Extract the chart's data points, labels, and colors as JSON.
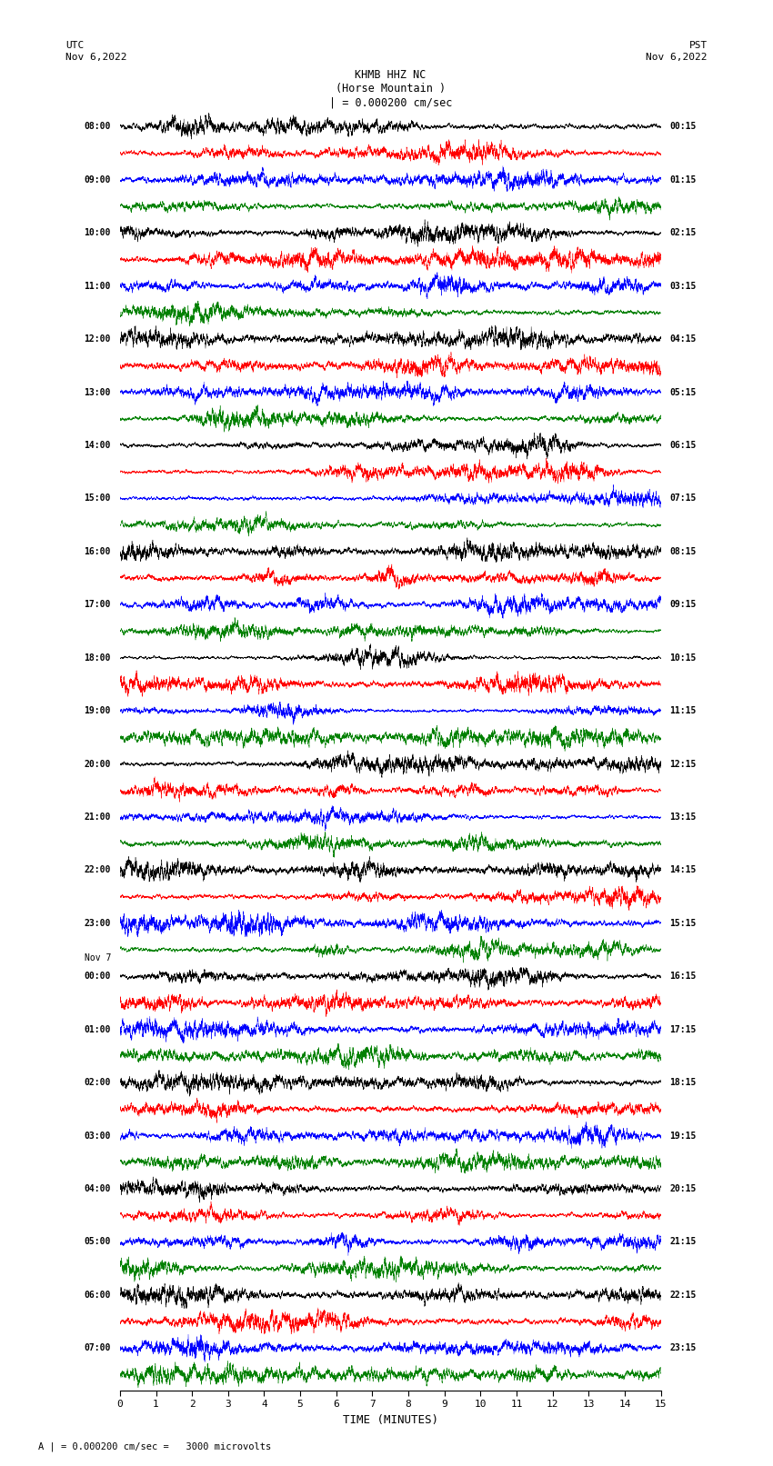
{
  "title_line1": "KHMB HHZ NC",
  "title_line2": "(Horse Mountain )",
  "title_line3": "| = 0.000200 cm/sec",
  "left_timezone": "UTC",
  "left_date": "Nov 6,2022",
  "right_timezone": "PST",
  "right_date": "Nov 6,2022",
  "xlabel": "TIME (MINUTES)",
  "footer": "A | = 0.000200 cm/sec =   3000 microvolts",
  "left_times": [
    "08:00",
    "09:00",
    "10:00",
    "11:00",
    "12:00",
    "13:00",
    "14:00",
    "15:00",
    "16:00",
    "17:00",
    "18:00",
    "19:00",
    "20:00",
    "21:00",
    "22:00",
    "23:00",
    "Nov 7",
    "00:00",
    "01:00",
    "02:00",
    "03:00",
    "04:00",
    "05:00",
    "06:00",
    "07:00"
  ],
  "right_times": [
    "00:15",
    "01:15",
    "02:15",
    "03:15",
    "04:15",
    "05:15",
    "06:15",
    "07:15",
    "08:15",
    "09:15",
    "10:15",
    "11:15",
    "12:15",
    "13:15",
    "14:15",
    "15:15",
    "16:15",
    "17:15",
    "18:15",
    "19:15",
    "20:15",
    "21:15",
    "22:15",
    "23:15"
  ],
  "num_rows": 48,
  "time_axis_max": 15,
  "colors": [
    "black",
    "red",
    "blue",
    "green"
  ],
  "bg_color": "white",
  "seed": 42
}
